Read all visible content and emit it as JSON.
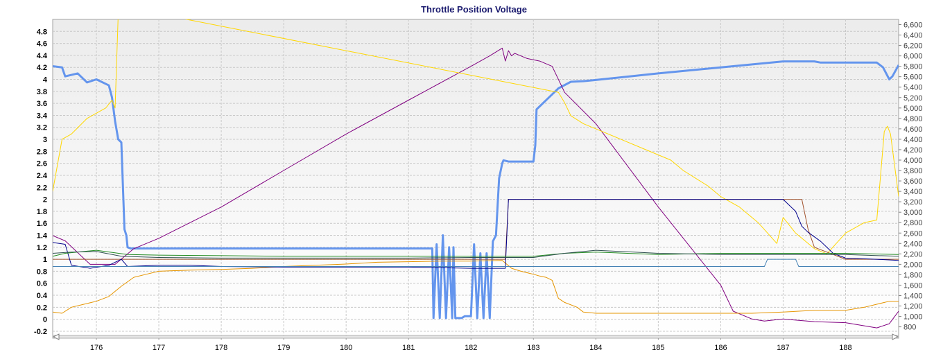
{
  "chart_data": {
    "type": "line",
    "title": "Throttle Position Voltage",
    "xlabel": "",
    "ylabel": "",
    "x_range": [
      175.3,
      188.85
    ],
    "y_left_range": [
      -0.27,
      5.0
    ],
    "y_right_range": [
      635,
      6700
    ],
    "grid": true,
    "x_ticks": [
      "176",
      "177",
      "178",
      "179",
      "180",
      "181",
      "182",
      "183",
      "184",
      "185",
      "186",
      "187",
      "188"
    ],
    "y_left_ticks": [
      "4.8",
      "4.6",
      "4.4",
      "4.2",
      "4",
      "3.8",
      "3.6",
      "3.4",
      "3.2",
      "3",
      "2.8",
      "2.6",
      "2.4",
      "2.2",
      "2",
      "1.8",
      "1.6",
      "1.4",
      "1.2",
      "1",
      "0.8",
      "0.6",
      "0.4",
      "0.2",
      "0",
      "-0.2"
    ],
    "y_right_ticks": [
      "6,600",
      "6,400",
      "6,200",
      "6,000",
      "5,800",
      "5,600",
      "5,400",
      "5,200",
      "5,000",
      "4,800",
      "4,600",
      "4,400",
      "4,200",
      "4,000",
      "3,800",
      "3,600",
      "3,400",
      "3,200",
      "3,000",
      "2,800",
      "2,600",
      "2,400",
      "2,200",
      "2,000",
      "1,800",
      "1,600",
      "1,400",
      "1,200",
      "1,000",
      "800"
    ],
    "series": [
      {
        "color": "#6495ED",
        "axis": "left",
        "width": 3,
        "x": [
          175.3,
          175.45,
          175.5,
          175.7,
          175.85,
          176.0,
          176.2,
          176.25,
          176.3,
          176.35,
          176.4,
          176.45,
          176.48,
          176.5,
          176.55,
          177.0,
          178.0,
          179.0,
          180.0,
          181.0,
          181.38,
          181.4,
          181.45,
          181.5,
          181.55,
          181.6,
          181.65,
          181.7,
          181.72,
          181.75,
          181.8,
          181.85,
          181.9,
          181.95,
          182.0,
          182.05,
          182.1,
          182.15,
          182.2,
          182.25,
          182.3,
          182.35,
          182.4,
          182.45,
          182.5,
          182.52,
          182.6,
          183.0,
          183.03,
          183.05,
          183.1,
          183.2,
          183.4,
          183.6,
          183.8,
          184.0,
          185.0,
          186.0,
          187.0,
          187.5,
          187.6,
          188.0,
          188.5,
          188.6,
          188.7,
          188.75,
          188.85
        ],
        "y": [
          4.22,
          4.2,
          4.05,
          4.1,
          3.95,
          4.0,
          3.9,
          3.7,
          3.3,
          3.0,
          2.95,
          1.5,
          1.4,
          1.2,
          1.18,
          1.18,
          1.18,
          1.18,
          1.18,
          1.18,
          1.18,
          0.02,
          1.25,
          0.02,
          1.4,
          0.02,
          1.2,
          0.02,
          1.2,
          0.02,
          0.02,
          0.02,
          0.05,
          0.05,
          0.05,
          1.25,
          0.02,
          1.1,
          0.02,
          1.1,
          0.02,
          1.3,
          1.4,
          2.35,
          2.6,
          2.65,
          2.63,
          2.63,
          2.9,
          3.5,
          3.55,
          3.65,
          3.85,
          3.96,
          3.97,
          3.99,
          4.1,
          4.2,
          4.3,
          4.3,
          4.28,
          4.28,
          4.28,
          4.2,
          4.0,
          4.05,
          4.24
        ]
      },
      {
        "color": "#800080",
        "axis": "right",
        "width": 1,
        "x": [
          175.3,
          175.5,
          175.9,
          176.3,
          176.6,
          177.0,
          178.0,
          179.0,
          180.0,
          181.0,
          182.0,
          182.3,
          182.5,
          182.55,
          182.6,
          182.65,
          182.7,
          182.9,
          183.1,
          183.3,
          183.5,
          184.0,
          185.0,
          186.0,
          186.2,
          186.5,
          186.7,
          187.0,
          187.5,
          188.0,
          188.5,
          188.7,
          188.85
        ],
        "y": [
          2550,
          2450,
          2000,
          2000,
          2300,
          2500,
          3100,
          3800,
          4500,
          5150,
          5800,
          6000,
          6150,
          5900,
          6100,
          6000,
          6050,
          5950,
          5900,
          5800,
          5300,
          4700,
          3100,
          1600,
          1100,
          950,
          910,
          950,
          900,
          880,
          780,
          860,
          1100
        ]
      },
      {
        "color": "#FFD700",
        "axis": "right",
        "width": 1,
        "x": [
          175.3,
          175.45,
          175.6,
          175.85,
          176.0,
          176.15,
          176.25,
          176.3,
          176.35,
          176.4,
          176.5,
          176.6,
          183.4,
          183.5,
          183.6,
          183.8,
          184.0,
          184.4,
          184.8,
          185.2,
          185.4,
          185.6,
          185.8,
          186.0,
          186.3,
          186.6,
          186.9,
          187.0,
          187.2,
          187.5,
          187.7,
          188.0,
          188.3,
          188.5,
          188.62,
          188.67,
          188.72,
          188.85
        ],
        "y": [
          3400,
          4400,
          4500,
          4800,
          4900,
          5000,
          5150,
          5000,
          6800,
          6900,
          6900,
          6900,
          5300,
          5100,
          4850,
          4700,
          4600,
          4400,
          4200,
          4000,
          3800,
          3650,
          3500,
          3300,
          3100,
          2800,
          2400,
          2900,
          2600,
          2300,
          2200,
          2600,
          2800,
          2850,
          4550,
          4650,
          4500,
          3300
        ]
      },
      {
        "color": "#E69500",
        "axis": "left",
        "width": 1,
        "x": [
          175.3,
          175.45,
          175.6,
          175.8,
          176.0,
          176.2,
          176.4,
          176.6,
          176.8,
          177.0,
          177.5,
          178.0,
          178.5,
          179.0,
          179.5,
          180.0,
          180.5,
          181.0,
          181.5,
          182.0,
          182.5,
          182.65,
          182.8,
          183.0,
          183.1,
          183.2,
          183.3,
          183.4,
          183.5,
          183.7,
          183.8,
          184.0,
          185.0,
          186.0,
          186.5,
          187.0,
          187.5,
          188.0,
          188.3,
          188.5,
          188.7,
          188.85
        ],
        "y": [
          0.12,
          0.1,
          0.2,
          0.25,
          0.3,
          0.38,
          0.55,
          0.7,
          0.75,
          0.8,
          0.82,
          0.83,
          0.85,
          0.88,
          0.9,
          0.92,
          0.95,
          0.96,
          0.97,
          0.97,
          0.98,
          0.85,
          0.8,
          0.75,
          0.72,
          0.7,
          0.65,
          0.35,
          0.28,
          0.2,
          0.12,
          0.1,
          0.1,
          0.1,
          0.1,
          0.12,
          0.15,
          0.15,
          0.2,
          0.25,
          0.3,
          0.3
        ]
      },
      {
        "color": "#A0522D",
        "axis": "left",
        "width": 1,
        "x": [
          175.3,
          176.0,
          177.0,
          180.0,
          182.0,
          182.55,
          182.6,
          183.0,
          185.0,
          186.0,
          187.0,
          187.3,
          187.4,
          187.5,
          188.0,
          188.5,
          188.85
        ],
        "y": [
          1.0,
          1.0,
          1.0,
          1.0,
          1.0,
          1.0,
          2.0,
          2.0,
          2.0,
          2.0,
          2.0,
          2.0,
          1.5,
          1.2,
          1.0,
          1.0,
          1.0
        ]
      },
      {
        "color": "#00008B",
        "axis": "left",
        "width": 1,
        "x": [
          175.3,
          175.5,
          175.6,
          175.9,
          176.2,
          176.4,
          176.5,
          177.0,
          177.5,
          178.0,
          179.0,
          180.0,
          181.0,
          182.0,
          182.55,
          182.6,
          183.0,
          184.0,
          185.0,
          186.0,
          187.0,
          187.2,
          187.3,
          187.4,
          187.6,
          187.8,
          188.0,
          188.5,
          188.85
        ],
        "y": [
          1.28,
          1.25,
          0.9,
          0.85,
          0.9,
          1.0,
          0.88,
          0.9,
          0.9,
          0.88,
          0.87,
          0.87,
          0.87,
          0.85,
          0.85,
          2.0,
          2.0,
          2.0,
          2.0,
          2.0,
          2.0,
          1.8,
          1.55,
          1.45,
          1.3,
          1.1,
          1.02,
          1.0,
          0.98
        ]
      },
      {
        "color": "#228B22",
        "axis": "left",
        "width": 1,
        "x": [
          175.3,
          175.5,
          176.0,
          176.5,
          177.0,
          178.0,
          179.0,
          180.0,
          181.0,
          182.0,
          183.0,
          183.5,
          184.0,
          185.0,
          186.0,
          187.0,
          188.0,
          188.85
        ],
        "y": [
          1.05,
          1.1,
          1.15,
          1.08,
          1.07,
          1.06,
          1.05,
          1.05,
          1.05,
          1.05,
          1.05,
          1.1,
          1.12,
          1.08,
          1.1,
          1.1,
          1.1,
          1.08
        ]
      },
      {
        "color": "#2F4F4F",
        "axis": "left",
        "width": 1,
        "x": [
          175.3,
          175.6,
          176.0,
          176.4,
          177.0,
          178.0,
          179.0,
          180.0,
          181.0,
          182.0,
          183.0,
          183.5,
          184.0,
          185.0,
          186.0,
          187.0,
          188.0,
          188.85
        ],
        "y": [
          1.1,
          1.12,
          1.13,
          1.05,
          1.03,
          1.02,
          1.02,
          1.02,
          1.02,
          1.03,
          1.03,
          1.1,
          1.15,
          1.1,
          1.08,
          1.08,
          1.08,
          1.05
        ]
      },
      {
        "color": "#4682B4",
        "axis": "left",
        "width": 1,
        "x": [
          175.3,
          176.0,
          180.0,
          182.5,
          183.0,
          185.0,
          186.5,
          186.7,
          186.75,
          187.2,
          187.25,
          188.5,
          188.85
        ],
        "y": [
          0.88,
          0.88,
          0.88,
          0.88,
          0.88,
          0.88,
          0.88,
          0.88,
          1.0,
          1.0,
          0.88,
          0.88,
          0.88
        ]
      }
    ]
  }
}
